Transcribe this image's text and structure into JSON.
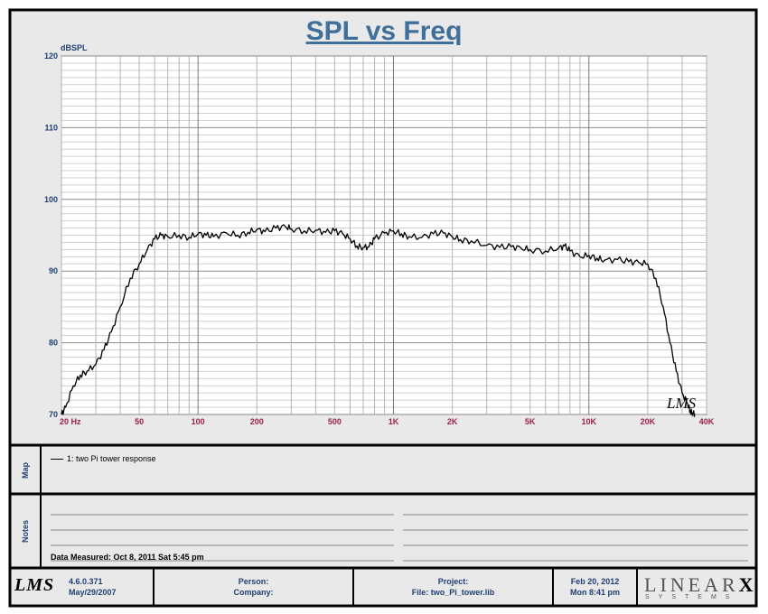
{
  "chart_data": {
    "type": "line",
    "title": "SPL vs Freq",
    "ylabel": "dBSPL",
    "xscale": "log",
    "xlim": [
      20,
      40000
    ],
    "ylim": [
      70,
      120
    ],
    "yticks": [
      70,
      80,
      90,
      100,
      110,
      120
    ],
    "xtick_values": [
      20,
      50,
      100,
      200,
      500,
      1000,
      2000,
      5000,
      10000,
      20000,
      40000
    ],
    "xtick_labels": [
      "20  Hz",
      "50",
      "100",
      "200",
      "500",
      "1K",
      "2K",
      "5K",
      "10K",
      "20K",
      "40K"
    ],
    "grid": true,
    "series": [
      {
        "name": "1: two Pi tower response",
        "color": "#000000",
        "x": [
          20,
          21,
          23,
          25,
          27,
          30,
          33,
          36,
          40,
          45,
          50,
          55,
          60,
          65,
          70,
          80,
          90,
          100,
          110,
          120,
          140,
          160,
          180,
          200,
          220,
          250,
          280,
          300,
          350,
          400,
          450,
          500,
          550,
          600,
          650,
          700,
          750,
          800,
          900,
          1000,
          1100,
          1200,
          1400,
          1600,
          1800,
          2000,
          2200,
          2500,
          3000,
          3500,
          4000,
          4500,
          5000,
          6000,
          7000,
          7500,
          8000,
          9000,
          10000,
          11000,
          12000,
          14000,
          16000,
          18000,
          20000,
          22000,
          24000,
          26000,
          28000,
          30000,
          32000,
          33000,
          34000,
          35000
        ],
        "y": [
          70,
          71,
          74,
          75.5,
          76,
          77,
          79,
          81.5,
          85,
          89,
          91,
          93,
          94.5,
          95,
          94.8,
          95,
          94.7,
          95.2,
          95,
          94.8,
          95.3,
          95,
          95.4,
          95.8,
          95.5,
          96,
          96.2,
          95.9,
          95.6,
          95.7,
          95.4,
          95.6,
          95.2,
          94.5,
          93.5,
          93.3,
          93.4,
          94.5,
          95.3,
          95.6,
          95.2,
          94.8,
          94.7,
          95.2,
          95.3,
          94.8,
          94.4,
          94.2,
          93.6,
          93.3,
          93.4,
          93.2,
          93,
          92.8,
          93.2,
          93.5,
          92.8,
          92,
          92.2,
          91.8,
          91.5,
          91.6,
          91.3,
          91.2,
          91,
          89,
          85,
          80,
          76,
          73,
          71.5,
          70.5,
          70.2,
          70
        ]
      }
    ]
  },
  "panels": {
    "map_label": "Map",
    "notes_label": "Notes"
  },
  "notes": {
    "measured": "Data Measured: Oct  8, 2011  Sat  5:45 pm"
  },
  "footer": {
    "logo": "LMS",
    "version": "4.6.0.371",
    "version_date": "May/29/2007",
    "person": "Person:",
    "company": "Company:",
    "project": "Project:",
    "file": "File: two_Pi_tower.lib",
    "date": "Feb 20, 2012",
    "time": "Mon  8:41 pm",
    "brand": "LINEAR",
    "brand_x": "X",
    "brand_sub": "SYSTEMS"
  },
  "watermark": "LMS"
}
